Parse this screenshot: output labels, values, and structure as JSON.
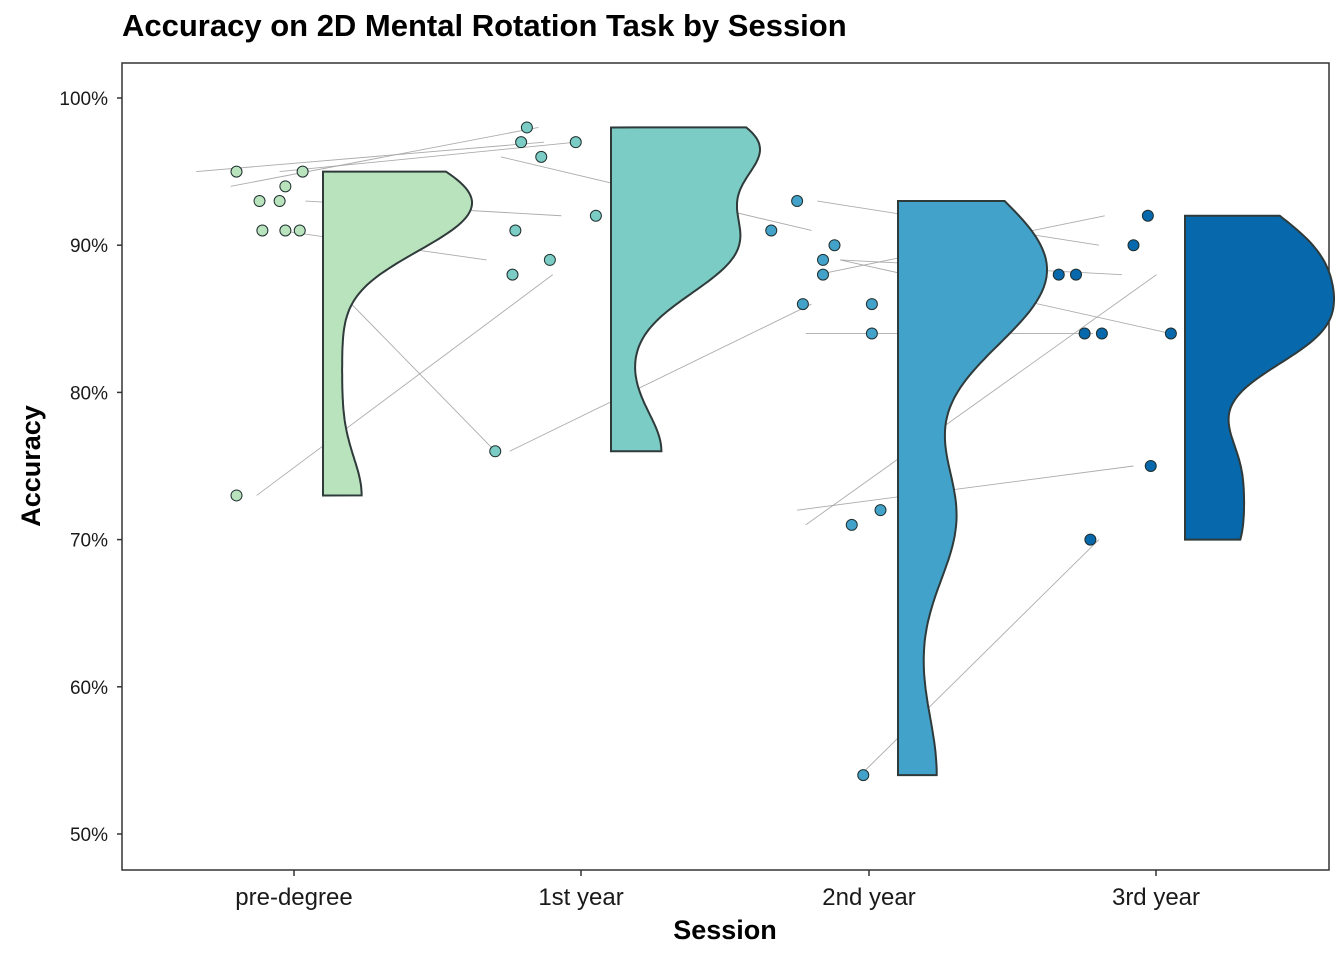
{
  "chart_data": {
    "type": "raincloud",
    "title": "Accuracy on 2D Mental Rotation Task by Session",
    "xlabel": "Session",
    "ylabel": "Accuracy",
    "categories": [
      "pre-degree",
      "1st year",
      "2nd year",
      "3rd year"
    ],
    "yticks": [
      50,
      60,
      70,
      80,
      90,
      100
    ],
    "ytick_labels": [
      "50%",
      "60%",
      "70%",
      "80%",
      "90%",
      "100%"
    ],
    "ylim": [
      47.5,
      102.5
    ],
    "colors": [
      "#b9e3bd",
      "#7bccc4",
      "#43a2ca",
      "#0868ac"
    ],
    "points": [
      {
        "session": 0,
        "jitter": -0.2,
        "y": 95
      },
      {
        "session": 0,
        "jitter": 0.03,
        "y": 95
      },
      {
        "session": 0,
        "jitter": -0.03,
        "y": 94
      },
      {
        "session": 0,
        "jitter": -0.12,
        "y": 93
      },
      {
        "session": 0,
        "jitter": -0.05,
        "y": 93
      },
      {
        "session": 0,
        "jitter": -0.11,
        "y": 91
      },
      {
        "session": 0,
        "jitter": -0.03,
        "y": 91
      },
      {
        "session": 0,
        "jitter": 0.02,
        "y": 91
      },
      {
        "session": 0,
        "jitter": -0.2,
        "y": 73
      },
      {
        "session": 1,
        "jitter": -0.19,
        "y": 98
      },
      {
        "session": 1,
        "jitter": -0.21,
        "y": 97
      },
      {
        "session": 1,
        "jitter": -0.02,
        "y": 97
      },
      {
        "session": 1,
        "jitter": -0.14,
        "y": 96
      },
      {
        "session": 1,
        "jitter": 0.05,
        "y": 92
      },
      {
        "session": 1,
        "jitter": -0.23,
        "y": 91
      },
      {
        "session": 1,
        "jitter": -0.24,
        "y": 88
      },
      {
        "session": 1,
        "jitter": -0.11,
        "y": 89
      },
      {
        "session": 1,
        "jitter": -0.3,
        "y": 76
      },
      {
        "session": 2,
        "jitter": -0.25,
        "y": 93
      },
      {
        "session": 2,
        "jitter": -0.34,
        "y": 91
      },
      {
        "session": 2,
        "jitter": -0.12,
        "y": 90
      },
      {
        "session": 2,
        "jitter": -0.16,
        "y": 89
      },
      {
        "session": 2,
        "jitter": -0.16,
        "y": 88
      },
      {
        "session": 2,
        "jitter": -0.23,
        "y": 86
      },
      {
        "session": 2,
        "jitter": 0.01,
        "y": 86
      },
      {
        "session": 2,
        "jitter": 0.01,
        "y": 84
      },
      {
        "session": 2,
        "jitter": 0.04,
        "y": 72
      },
      {
        "session": 2,
        "jitter": -0.06,
        "y": 71
      },
      {
        "session": 2,
        "jitter": -0.02,
        "y": 54
      },
      {
        "session": 3,
        "jitter": -0.03,
        "y": 92
      },
      {
        "session": 3,
        "jitter": -0.08,
        "y": 90
      },
      {
        "session": 3,
        "jitter": -0.34,
        "y": 88
      },
      {
        "session": 3,
        "jitter": -0.28,
        "y": 88
      },
      {
        "session": 3,
        "jitter": -0.25,
        "y": 84
      },
      {
        "session": 3,
        "jitter": -0.19,
        "y": 84
      },
      {
        "session": 3,
        "jitter": 0.05,
        "y": 84
      },
      {
        "session": 3,
        "jitter": -0.02,
        "y": 75
      },
      {
        "session": 3,
        "jitter": -0.23,
        "y": 70
      }
    ],
    "lines": [
      {
        "session": 0,
        "x1": -0.34,
        "y1": 95,
        "x2": 0.87,
        "y2": 97
      },
      {
        "session": 0,
        "x1": -0.22,
        "y1": 94,
        "x2": 0.85,
        "y2": 98
      },
      {
        "session": 0,
        "x1": -0.05,
        "y1": 95,
        "x2": 0.98,
        "y2": 97
      },
      {
        "session": 0,
        "x1": 0.04,
        "y1": 93,
        "x2": 0.93,
        "y2": 92
      },
      {
        "session": 0,
        "x1": -0.05,
        "y1": 91,
        "x2": 0.67,
        "y2": 89
      },
      {
        "session": 0,
        "x1": 0.1,
        "y1": 88,
        "x2": 0.7,
        "y2": 76
      },
      {
        "session": 0,
        "x1": -0.13,
        "y1": 73,
        "x2": 0.9,
        "y2": 88
      },
      {
        "session": 1,
        "x1": 0.72,
        "y1": 96,
        "x2": 1.8,
        "y2": 91
      },
      {
        "session": 1,
        "x1": 0.75,
        "y1": 76,
        "x2": 1.8,
        "y2": 86
      },
      {
        "session": 2,
        "x1": 1.82,
        "y1": 93,
        "x2": 2.8,
        "y2": 90
      },
      {
        "session": 2,
        "x1": 1.82,
        "y1": 88,
        "x2": 2.82,
        "y2": 92
      },
      {
        "session": 2,
        "x1": 1.9,
        "y1": 89,
        "x2": 2.88,
        "y2": 88
      },
      {
        "session": 2,
        "x1": 1.9,
        "y1": 89,
        "x2": 3.05,
        "y2": 84
      },
      {
        "session": 2,
        "x1": 1.78,
        "y1": 84,
        "x2": 2.78,
        "y2": 84
      },
      {
        "session": 2,
        "x1": 1.75,
        "y1": 72,
        "x2": 2.92,
        "y2": 75
      },
      {
        "session": 2,
        "x1": 1.78,
        "y1": 71,
        "x2": 3.0,
        "y2": 88
      },
      {
        "session": 2,
        "x1": 1.97,
        "y1": 54,
        "x2": 2.8,
        "y2": 70
      }
    ]
  }
}
